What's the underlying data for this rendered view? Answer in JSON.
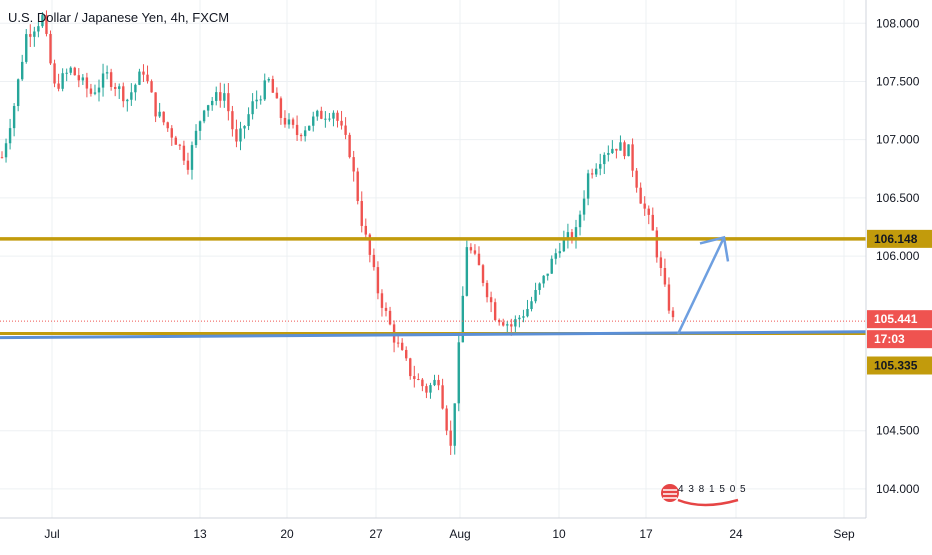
{
  "title": "U.S. Dollar / Japanese Yen, 4h, FXCM",
  "colors": {
    "bull": "#26a69a",
    "bear": "#ef5350",
    "gold_line": "#c29b0c",
    "blue_line": "#5b8fd6",
    "arrow": "#6e9fe0",
    "current_tag": "#ef5350",
    "grid": "#edf0f3",
    "axis_text": "#131722"
  },
  "chart_data": {
    "type": "candlestick",
    "symbol": "USDJPY",
    "timeframe": "4h",
    "source": "FXCM",
    "y_ticks": [
      "108.000",
      "107.500",
      "107.000",
      "106.500",
      "106.000",
      "104.500",
      "104.000"
    ],
    "x_ticks": [
      "Jul",
      "13",
      "20",
      "27",
      "Aug",
      "10",
      "17",
      "24",
      "Sep"
    ],
    "ylim": [
      103.75,
      108.2
    ],
    "series_path": [
      {
        "t": 0,
        "p": 106.85
      },
      {
        "t": 3,
        "p": 107.3
      },
      {
        "t": 6,
        "p": 107.9
      },
      {
        "t": 10,
        "p": 108.05
      },
      {
        "t": 13,
        "p": 107.45
      },
      {
        "t": 17,
        "p": 107.6
      },
      {
        "t": 22,
        "p": 107.4
      },
      {
        "t": 26,
        "p": 107.55
      },
      {
        "t": 31,
        "p": 107.35
      },
      {
        "t": 35,
        "p": 107.6
      },
      {
        "t": 38,
        "p": 107.25
      },
      {
        "t": 43,
        "p": 107.0
      },
      {
        "t": 46,
        "p": 106.8
      },
      {
        "t": 50,
        "p": 107.3
      },
      {
        "t": 55,
        "p": 107.4
      },
      {
        "t": 58,
        "p": 106.95
      },
      {
        "t": 62,
        "p": 107.3
      },
      {
        "t": 66,
        "p": 107.5
      },
      {
        "t": 69,
        "p": 107.2
      },
      {
        "t": 73,
        "p": 107.05
      },
      {
        "t": 78,
        "p": 107.2
      },
      {
        "t": 82,
        "p": 107.25
      },
      {
        "t": 86,
        "p": 106.9
      },
      {
        "t": 89,
        "p": 106.3
      },
      {
        "t": 93,
        "p": 105.7
      },
      {
        "t": 97,
        "p": 105.3
      },
      {
        "t": 101,
        "p": 105.0
      },
      {
        "t": 105,
        "p": 104.85
      },
      {
        "t": 108,
        "p": 104.95
      },
      {
        "t": 111,
        "p": 104.35
      },
      {
        "t": 113,
        "p": 105.2
      },
      {
        "t": 115,
        "p": 106.1
      },
      {
        "t": 118,
        "p": 105.9
      },
      {
        "t": 122,
        "p": 105.5
      },
      {
        "t": 126,
        "p": 105.4
      },
      {
        "t": 130,
        "p": 105.55
      },
      {
        "t": 134,
        "p": 105.8
      },
      {
        "t": 138,
        "p": 106.1
      },
      {
        "t": 142,
        "p": 106.2
      },
      {
        "t": 145,
        "p": 106.7
      },
      {
        "t": 149,
        "p": 106.9
      },
      {
        "t": 152,
        "p": 106.95
      },
      {
        "t": 155,
        "p": 106.9
      },
      {
        "t": 158,
        "p": 106.5
      },
      {
        "t": 161,
        "p": 106.2
      },
      {
        "t": 164,
        "p": 105.7
      },
      {
        "t": 166,
        "p": 105.44
      }
    ],
    "horizontal_lines": [
      {
        "price": 106.148,
        "color": "gold",
        "label": "106.148"
      },
      {
        "price": 105.335,
        "color": "gold"
      },
      {
        "price": 105.335,
        "color": "blue",
        "label": "105.335",
        "slope_end_price": 105.3
      }
    ],
    "current_price": "105.441",
    "countdown": "17:03",
    "projection_arrow": {
      "from_price": 105.33,
      "to_price": 106.16
    }
  },
  "watermark": {
    "text": "4 3 8 1 5 0 5"
  }
}
